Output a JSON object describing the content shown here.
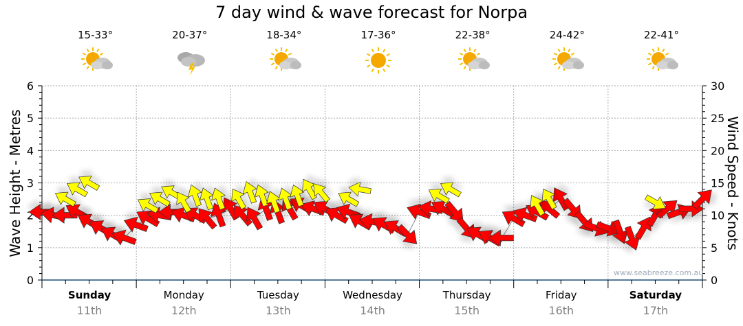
{
  "title": "7 day wind & wave forecast for Norpa",
  "days": [
    {
      "name": "Sunday",
      "date": "11th",
      "temp": "15-33°",
      "icon": "partly-cloudy",
      "bold": true
    },
    {
      "name": "Monday",
      "date": "12th",
      "temp": "20-37°",
      "icon": "storm",
      "bold": false
    },
    {
      "name": "Tuesday",
      "date": "13th",
      "temp": "18-34°",
      "icon": "partly-cloudy",
      "bold": false
    },
    {
      "name": "Wednesday",
      "date": "14th",
      "temp": "17-36°",
      "icon": "sunny",
      "bold": false
    },
    {
      "name": "Thursday",
      "date": "15th",
      "temp": "22-38°",
      "icon": "partly-cloudy",
      "bold": false
    },
    {
      "name": "Friday",
      "date": "16th",
      "temp": "24-42°",
      "icon": "partly-cloudy",
      "bold": false
    },
    {
      "name": "Saturday",
      "date": "17th",
      "temp": "22-41°",
      "icon": "partly-cloudy",
      "bold": true
    }
  ],
  "watermark": "www.seabreeze.com.au",
  "chart_data": {
    "type": "scatter",
    "title": "7 day wind & wave forecast for Norpa",
    "ylabel_left": "Wave Height - Metres",
    "ylabel_right": "Wind Speed - Knots",
    "ylim_left": [
      0,
      6
    ],
    "ylim_right": [
      0,
      30
    ],
    "yticks_left": [
      "0",
      "1",
      "2",
      "3",
      "4",
      "5",
      "6"
    ],
    "yticks_right": [
      "0",
      "5",
      "10",
      "15",
      "20",
      "25",
      "30"
    ],
    "x_range_hours": [
      0,
      168
    ],
    "grid": true,
    "colors": {
      "wind": "#ff0000",
      "wave": "#ffff00",
      "axis": "#1a4f7a",
      "grid": "#aaaaaa"
    },
    "series": [
      {
        "name": "Wind (knots, arrow points to compass deg)",
        "color": "#ff0000",
        "points": [
          [
            0,
            10.5,
            270
          ],
          [
            3,
            10,
            280
          ],
          [
            6,
            10,
            270
          ],
          [
            9,
            10.5,
            300
          ],
          [
            12,
            9,
            300
          ],
          [
            15,
            8,
            300
          ],
          [
            18,
            7,
            300
          ],
          [
            21,
            6.5,
            290
          ],
          [
            24,
            8.5,
            290
          ],
          [
            27,
            9.5,
            300
          ],
          [
            30,
            10,
            280
          ],
          [
            33,
            10.5,
            270
          ],
          [
            36,
            10,
            290
          ],
          [
            39,
            10,
            300
          ],
          [
            42,
            9.5,
            320
          ],
          [
            45,
            10,
            340
          ],
          [
            48,
            11,
            330
          ],
          [
            51,
            10,
            320
          ],
          [
            54,
            9.5,
            330
          ],
          [
            57,
            11,
            340
          ],
          [
            60,
            10.5,
            340
          ],
          [
            63,
            11,
            330
          ],
          [
            66,
            11.5,
            300
          ],
          [
            69,
            11,
            290
          ],
          [
            72,
            11,
            300
          ],
          [
            75,
            10,
            300
          ],
          [
            78,
            10.5,
            290
          ],
          [
            81,
            9,
            300
          ],
          [
            84,
            9,
            280
          ],
          [
            87,
            8.5,
            300
          ],
          [
            90,
            8,
            300
          ],
          [
            93,
            7,
            135
          ],
          [
            96,
            10.5,
            290
          ],
          [
            99,
            11,
            280
          ],
          [
            102,
            11,
            300
          ],
          [
            105,
            10.5,
            140
          ],
          [
            108,
            8,
            140
          ],
          [
            111,
            7,
            300
          ],
          [
            114,
            6.5,
            300
          ],
          [
            117,
            6.5,
            270
          ],
          [
            120,
            9.5,
            300
          ],
          [
            123,
            10,
            290
          ],
          [
            126,
            10.5,
            300
          ],
          [
            129,
            11,
            310
          ],
          [
            132,
            12.5,
            330
          ],
          [
            135,
            11,
            140
          ],
          [
            138,
            9,
            140
          ],
          [
            141,
            8,
            110
          ],
          [
            144,
            8,
            110
          ],
          [
            147,
            7.5,
            160
          ],
          [
            150,
            6.5,
            160
          ],
          [
            153,
            8,
            30
          ],
          [
            156,
            10,
            30
          ],
          [
            159,
            11,
            50
          ],
          [
            162,
            10.5,
            70
          ],
          [
            165,
            11,
            90
          ],
          [
            168,
            12.5,
            45
          ]
        ]
      },
      {
        "name": "Waves (metres, arrow points to compass deg)",
        "color": "#ffff00",
        "points": [
          [
            6,
            2.5,
            300
          ],
          [
            9,
            2.8,
            300
          ],
          [
            12,
            3.0,
            300
          ],
          [
            27,
            2.3,
            300
          ],
          [
            30,
            2.5,
            300
          ],
          [
            33,
            2.7,
            300
          ],
          [
            36,
            2.4,
            330
          ],
          [
            39,
            2.6,
            340
          ],
          [
            42,
            2.5,
            340
          ],
          [
            45,
            2.5,
            340
          ],
          [
            50,
            2.5,
            330
          ],
          [
            53,
            2.7,
            340
          ],
          [
            56,
            2.6,
            340
          ],
          [
            59,
            2.4,
            340
          ],
          [
            62,
            2.5,
            340
          ],
          [
            65,
            2.6,
            340
          ],
          [
            68,
            2.8,
            330
          ],
          [
            71,
            2.7,
            320
          ],
          [
            78,
            2.5,
            300
          ],
          [
            81,
            2.8,
            280
          ],
          [
            101,
            2.6,
            300
          ],
          [
            104,
            2.8,
            300
          ],
          [
            126,
            2.3,
            330
          ],
          [
            129,
            2.5,
            330
          ],
          [
            156,
            2.4,
            120
          ]
        ]
      }
    ]
  }
}
